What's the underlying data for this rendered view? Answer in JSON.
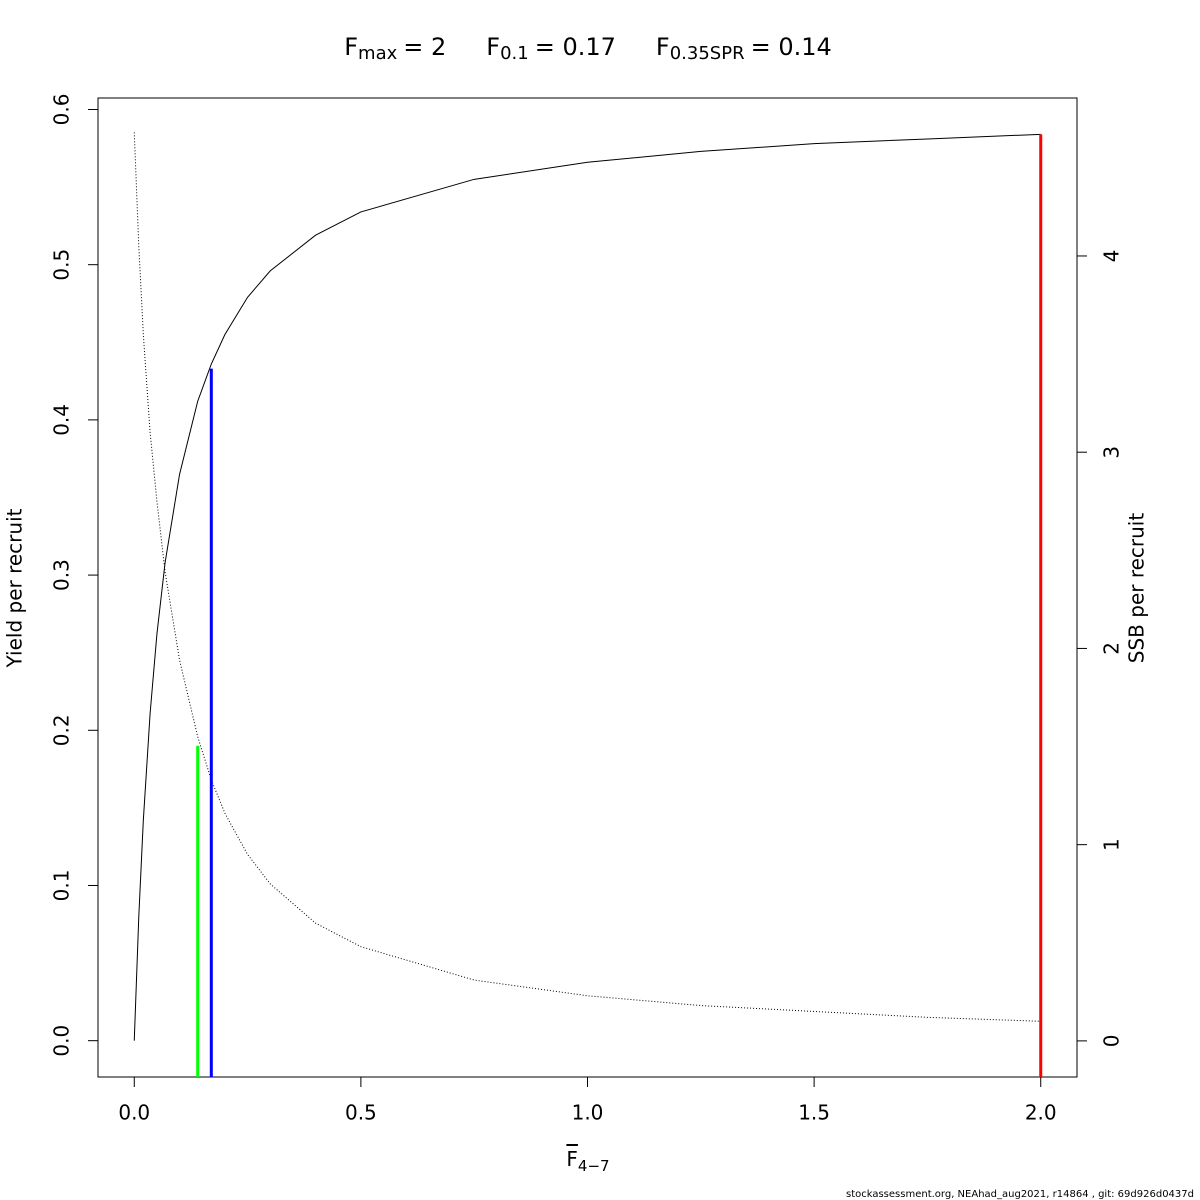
{
  "chart_data": {
    "type": "line",
    "title_parts": [
      {
        "main": "F",
        "sub": "max",
        "rest": "= 2"
      },
      {
        "main": "F",
        "sub": "0.1",
        "rest": "= 0.17"
      },
      {
        "main": "F",
        "sub": "0.35SPR",
        "rest": "= 0.14"
      }
    ],
    "x_label": {
      "main": "F",
      "sub": "4−7"
    },
    "y_label": "Yield per recruit",
    "y2_label": "SSB per recruit",
    "footer": "stockassessment.org, NEAhad_aug2021, r14864 , git: 69d926d0437d",
    "x": [
      0,
      0.01,
      0.02,
      0.035,
      0.05,
      0.068,
      0.1,
      0.14,
      0.17,
      0.2,
      0.25,
      0.3,
      0.4,
      0.5,
      0.75,
      1,
      1.25,
      1.5,
      1.75,
      2
    ],
    "series": [
      {
        "name": "Yield per recruit",
        "color": "#000000",
        "values": [
          0,
          0.08,
          0.142,
          0.211,
          0.262,
          0.308,
          0.365,
          0.412,
          0.436,
          0.455,
          0.479,
          0.496,
          0.519,
          0.534,
          0.555,
          0.566,
          0.573,
          0.578,
          0.581,
          0.584
        ]
      },
      {
        "name": "SSB per recruit",
        "color": "#000000",
        "axis": "y2",
        "dashed": true,
        "values": [
          4.63,
          4.05,
          3.6,
          3.1,
          2.75,
          2.39,
          1.94,
          1.55,
          1.33,
          1.16,
          0.95,
          0.8,
          0.6,
          0.48,
          0.31,
          0.23,
          0.18,
          0.15,
          0.12,
          0.1
        ]
      }
    ],
    "reference_lines": [
      {
        "x": 0.14,
        "y": 0.19,
        "color": "#00ff00"
      },
      {
        "x": 0.17,
        "y": 0.433,
        "color": "#0000ff"
      },
      {
        "x": 2,
        "y": 0.584,
        "color": "#ff0000"
      }
    ],
    "xlim": [
      -0.08,
      2.08
    ],
    "xticks": [
      {
        "value": 0,
        "label": "0.0"
      },
      0.5,
      {
        "value": 1,
        "label": "1.0"
      },
      1.5,
      {
        "value": 2,
        "label": "2.0"
      }
    ],
    "ylim": [
      -0.0234,
      0.6074
    ],
    "yticks": [
      {
        "value": 0,
        "label": "0.0"
      },
      0.1,
      0.2,
      0.3,
      0.4,
      0.5,
      0.6
    ],
    "y2lim": [
      -0.184,
      4.805
    ],
    "y2ticks": [
      0,
      1,
      2,
      3,
      4
    ]
  }
}
